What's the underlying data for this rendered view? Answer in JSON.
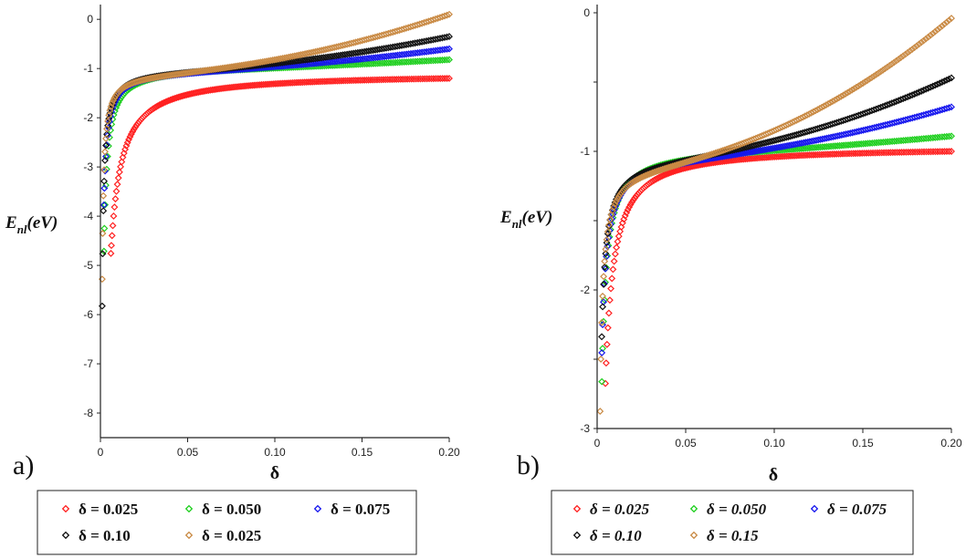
{
  "chart_data": [
    {
      "type": "scatter",
      "panel_label": "a)",
      "title": "",
      "xlabel": "δ",
      "ylabel": {
        "main": "E",
        "sub": "nl",
        "unit": "(eV)"
      },
      "xlim": [
        0,
        0.2
      ],
      "ylim": [
        -8.5,
        0.3
      ],
      "xticks": [
        "0",
        "0.05",
        "0.10",
        "0.15",
        "0.20"
      ],
      "xtick_values": [
        0,
        0.05,
        0.1,
        0.15,
        0.2
      ],
      "yticks": [
        "0",
        "-1",
        "-2",
        "-3",
        "-4",
        "-5",
        "-6",
        "-7",
        "-8"
      ],
      "ytick_values": [
        0,
        -1,
        -2,
        -3,
        -4,
        -5,
        -6,
        -7,
        -8
      ],
      "series": [
        {
          "name": "δ = 0.025",
          "color": "#ff2020",
          "start": 0.006,
          "ymin": -8.0,
          "v2": -1.2,
          "b": 0.0,
          "k": 0.022
        },
        {
          "name": "δ = 0.050",
          "color": "#1ecf1e",
          "start": 0.002,
          "ymin": -8.5,
          "v2": -1.0,
          "b": 0.18,
          "k": 0.0075
        },
        {
          "name": "δ = 0.075",
          "color": "#1515ee",
          "start": 0.002,
          "ymin": -8.5,
          "v2": -1.05,
          "b": 0.45,
          "k": 0.0055
        },
        {
          "name": "δ = 0.10",
          "color": "#101010",
          "start": 0.001,
          "ymin": -8.5,
          "v2": -1.05,
          "b": 0.7,
          "k": 0.0048
        },
        {
          "name": "δ = 0.025",
          "color": "#c98a44",
          "start": 0.001,
          "ymin": -8.5,
          "v2": -1.1,
          "b": 1.2,
          "k": 0.0042
        }
      ],
      "legend": [
        "δ = 0.025",
        "δ = 0.050",
        "δ = 0.075",
        "δ = 0.10",
        "δ = 0.025"
      ]
    },
    {
      "type": "scatter",
      "panel_label": "b)",
      "title": "",
      "xlabel": "δ",
      "ylabel": {
        "main": "E",
        "sub": "nl",
        "unit": "(eV)"
      },
      "xlim": [
        0,
        0.2
      ],
      "ylim": [
        -3,
        0
      ],
      "xticks": [
        "0",
        "0.05",
        "0.10",
        "0.15",
        "0.20"
      ],
      "xtick_values": [
        0,
        0.05,
        0.1,
        0.15,
        0.2
      ],
      "yticks": [
        "0",
        "-0.5",
        "-1",
        "-1.5",
        "-2",
        "-2.5",
        "-3"
      ],
      "ytick_values": [
        0,
        -0.5,
        -1,
        -1.5,
        -2,
        -2.5,
        -3
      ],
      "ytick_labels_shown": [
        "0",
        "",
        "-1",
        "",
        "-2",
        "",
        "-3"
      ],
      "series": [
        {
          "name": "δ = 0.025",
          "color": "#ff2020",
          "start": 0.004,
          "ymin": -2.7,
          "v2": -1.0,
          "b": 0.0,
          "k": 0.008
        },
        {
          "name": "δ = 0.050",
          "color": "#1ecf1e",
          "start": 0.002,
          "ymin": -2.8,
          "v2": -1.0,
          "b": 0.11,
          "k": 0.0045
        },
        {
          "name": "δ = 0.075",
          "color": "#1515ee",
          "start": 0.002,
          "ymin": -2.6,
          "v2": -1.05,
          "b": 0.37,
          "k": 0.0038
        },
        {
          "name": "δ = 0.10",
          "color": "#101010",
          "start": 0.001,
          "ymin": -2.6,
          "v2": -1.05,
          "b": 0.58,
          "k": 0.0034
        },
        {
          "name": "δ = 0.15",
          "color": "#c98a44",
          "start": 0.001,
          "ymin": -2.9,
          "v2": -1.1,
          "b": 1.06,
          "k": 0.003
        }
      ],
      "legend": [
        "δ = 0.025",
        "δ = 0.050",
        "δ = 0.075",
        "δ = 0.10",
        "δ = 0.15"
      ]
    }
  ]
}
